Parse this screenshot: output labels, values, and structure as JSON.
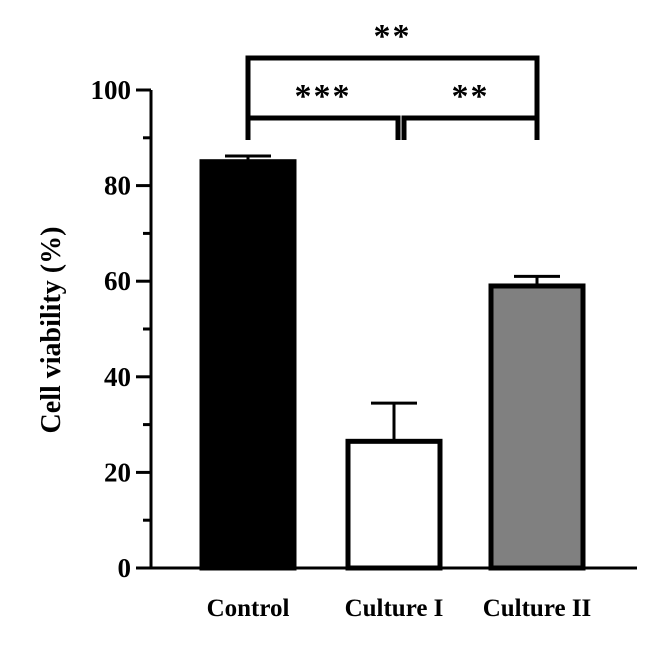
{
  "chart_data": {
    "type": "bar",
    "title": "",
    "xlabel": "",
    "ylabel": "Cell viability (%)",
    "ylim": [
      0,
      100
    ],
    "yticks": [
      "0",
      "20",
      "40",
      "60",
      "80",
      "100"
    ],
    "categories": [
      "Control",
      "Culture I",
      "Culture II"
    ],
    "values": [
      85,
      26.5,
      59
    ],
    "errors": [
      1.2,
      8,
      2
    ],
    "bar_colors": [
      "#000000",
      "#ffffff",
      "#808080"
    ],
    "significance": [
      {
        "from": 0,
        "to": 1,
        "label": "***",
        "level": 1
      },
      {
        "from": 1,
        "to": 2,
        "label": "**",
        "level": 1
      },
      {
        "from": 0,
        "to": 2,
        "label": "**",
        "level": 2
      }
    ]
  }
}
